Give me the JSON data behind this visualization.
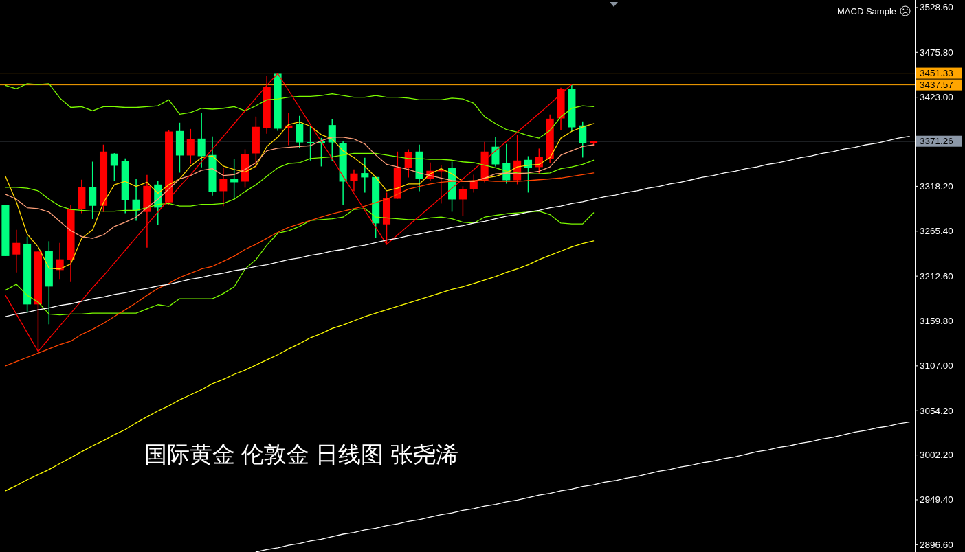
{
  "chart_data": {
    "type": "candlestick",
    "categories": [
      null,
      null,
      null,
      null,
      null,
      null,
      null,
      null,
      null,
      null,
      null,
      null,
      null,
      null,
      null,
      null,
      null,
      null,
      null,
      null,
      null,
      null,
      null,
      null,
      null,
      null,
      null,
      null,
      null,
      null,
      null,
      null,
      null,
      null,
      null,
      null,
      null,
      null,
      null,
      null,
      null,
      null,
      null,
      null,
      null,
      null,
      null,
      null,
      null,
      null,
      null,
      null,
      null,
      null,
      null,
      null,
      null,
      null,
      null,
      null,
      null,
      null,
      null,
      null,
      null,
      null,
      null,
      null,
      null,
      null,
      null,
      null,
      null,
      null,
      null,
      null,
      null,
      null,
      null,
      null,
      null,
      null,
      null,
      null
    ],
    "ohlc": [
      [
        3296.7,
        3296.7,
        3236.2,
        3236.2
      ],
      [
        3238.0,
        3267.1,
        3217.0,
        3251.7
      ],
      [
        3250.7,
        3259.0,
        3170.2,
        3179.3
      ],
      [
        3179.3,
        3242.3,
        3124.2,
        3241.5
      ],
      [
        3242.1,
        3253.6,
        3155.9,
        3200.3
      ],
      [
        3219.7,
        3251.7,
        3208.4,
        3232.4
      ],
      [
        3231.8,
        3296.7,
        3205.7,
        3291.3
      ],
      [
        3291.3,
        3326.0,
        3286.7,
        3317.1
      ],
      [
        3317.1,
        3347.2,
        3279.8,
        3295.3
      ],
      [
        3295.3,
        3367.2,
        3288.1,
        3359.1
      ],
      [
        3356.7,
        3357.2,
        3324.6,
        3342.4
      ],
      [
        3347.8,
        3351.0,
        3286.7,
        3302.0
      ],
      [
        3302.6,
        3326.8,
        3277.8,
        3289.7
      ],
      [
        3288.1,
        3331.7,
        3246.1,
        3318.7
      ],
      [
        3320.3,
        3324.4,
        3273.0,
        3293.2
      ],
      [
        3299.4,
        3384.4,
        3295.9,
        3382.7
      ],
      [
        3383.3,
        3393.0,
        3334.3,
        3354.5
      ],
      [
        3354.5,
        3385.7,
        3344.6,
        3373.6
      ],
      [
        3374.4,
        3404.3,
        3340.5,
        3353.7
      ],
      [
        3355.1,
        3376.9,
        3307.4,
        3311.7
      ],
      [
        3312.5,
        3339.7,
        3294.8,
        3326.8
      ],
      [
        3326.8,
        3350.5,
        3302.8,
        3323.0
      ],
      [
        3323.8,
        3361.8,
        3316.6,
        3355.9
      ],
      [
        3356.9,
        3400.3,
        3340.3,
        3388.2
      ],
      [
        3386.5,
        3447.9,
        3380.1,
        3435.0
      ],
      [
        3450.6,
        3451.33,
        3383.6,
        3386.0
      ],
      [
        3386.5,
        3404.3,
        3366.6,
        3389.8
      ],
      [
        3391.4,
        3401.1,
        3363.4,
        3369.8
      ],
      [
        3370.2,
        3389.0,
        3348.6,
        3369.6
      ],
      [
        3371.4,
        3375.2,
        3341.6,
        3369.3
      ],
      [
        3390.3,
        3397.0,
        3347.8,
        3369.8
      ],
      [
        3369.3,
        3371.0,
        3296.4,
        3323.8
      ],
      [
        3324.6,
        3338.1,
        3312.5,
        3333.3
      ],
      [
        3333.8,
        3351.8,
        3310.9,
        3328.7
      ],
      [
        3329.2,
        3329.2,
        3257.4,
        3274.6
      ],
      [
        3273.5,
        3310.9,
        3249.6,
        3304.2
      ],
      [
        3303.6,
        3359.1,
        3303.6,
        3340.5
      ],
      [
        3339.7,
        3361.8,
        3328.7,
        3358.3
      ],
      [
        3359.1,
        3367.2,
        3312.5,
        3327.0
      ],
      [
        3327.0,
        3346.2,
        3324.6,
        3336.5
      ],
      [
        3335.9,
        3343.0,
        3298.0,
        3337.3
      ],
      [
        3339.7,
        3347.2,
        3288.3,
        3302.8
      ],
      [
        3302.8,
        3318.2,
        3283.5,
        3314.9
      ],
      [
        3314.9,
        3331.9,
        3310.9,
        3324.6
      ],
      [
        3324.6,
        3370.4,
        3323.0,
        3359.1
      ],
      [
        3364.8,
        3376.0,
        3341.6,
        3344.0
      ],
      [
        3345.4,
        3368.0,
        3321.4,
        3325.4
      ],
      [
        3325.4,
        3378.5,
        3320.6,
        3348.6
      ],
      [
        3349.4,
        3353.7,
        3310.9,
        3340.0
      ],
      [
        3340.8,
        3362.6,
        3332.7,
        3352.6
      ],
      [
        3350.5,
        3402.7,
        3345.6,
        3397.8
      ],
      [
        3398.1,
        3434.2,
        3384.4,
        3432.5
      ],
      [
        3432.5,
        3437.57,
        3382.7,
        3387.6
      ],
      [
        3389.8,
        3394.6,
        3352.1,
        3369.0
      ],
      [
        3369.0,
        3371.26,
        3365.5,
        3371.26
      ],
      null,
      null,
      null,
      null,
      null,
      null,
      null,
      null,
      null,
      null,
      null,
      null,
      null,
      null,
      null,
      null,
      null,
      null,
      null,
      null,
      null,
      null,
      null,
      null,
      null,
      null,
      null,
      null,
      null
    ],
    "colors": [
      "#00ff7f",
      "#ff0000",
      "#00ff7f",
      "#ff0000",
      "#00ff7f",
      "#ff0000",
      "#ff0000",
      "#ff0000",
      "#00ff7f",
      "#ff0000",
      "#00ff7f",
      "#00ff7f",
      "#00ff7f",
      "#ff0000",
      "#00ff7f",
      "#ff0000",
      "#00ff7f",
      "#ff0000",
      "#00ff7f",
      "#00ff7f",
      "#ff0000",
      "#00ff7f",
      "#ff0000",
      "#ff0000",
      "#ff0000",
      "#00ff7f",
      "#ff0000",
      "#00ff7f",
      "#00ff7f",
      "#00ff7f",
      "#00ff7f",
      "#00ff7f",
      "#ff0000",
      "#00ff7f",
      "#00ff7f",
      "#ff0000",
      "#ff0000",
      "#ff0000",
      "#00ff7f",
      "#ff0000",
      "#ff0000",
      "#00ff7f",
      "#ff0000",
      "#ff0000",
      "#ff0000",
      "#00ff7f",
      "#00ff7f",
      "#ff0000",
      "#00ff7f",
      "#ff0000",
      "#ff0000",
      "#ff0000",
      "#00ff7f",
      "#00ff7f",
      "#ff0000",
      null,
      null,
      null,
      null,
      null,
      null,
      null,
      null,
      null,
      null,
      null,
      null,
      null,
      null,
      null,
      null,
      null,
      null,
      null,
      null,
      null,
      null,
      null,
      null,
      null,
      null,
      null,
      null,
      null
    ],
    "series": [
      {
        "type": "line",
        "color": "#7cfc00",
        "values": [
          3437,
          3433,
          3439,
          3438,
          3439,
          3422,
          3411,
          3412,
          3407,
          3412,
          3412,
          3411,
          3411,
          3412,
          3413,
          3420,
          3403,
          3405,
          3410,
          3409,
          3410,
          3412,
          3407,
          3413,
          3420,
          3421,
          3423,
          3424,
          3424,
          3425,
          3427,
          3425,
          3423,
          3423,
          3425,
          3423,
          3423,
          3422,
          3420,
          3420,
          3420,
          3422,
          3421,
          3416,
          3400,
          3392,
          3385,
          3382,
          3378,
          3375,
          3384,
          3400,
          3410,
          3413,
          3412,
          null,
          null,
          null,
          null,
          null,
          null,
          null,
          null,
          null,
          null,
          null,
          null,
          null,
          null,
          null,
          null,
          null,
          null,
          null,
          null,
          null,
          null,
          null,
          null,
          null,
          null,
          null,
          null,
          null
        ]
      },
      {
        "type": "line",
        "color": "#7cfc00",
        "values": [
          3196,
          3203,
          3190,
          3182,
          3168,
          3167,
          3168,
          3168,
          3169,
          3169,
          3169,
          3169,
          3169,
          3174,
          3179,
          3177,
          3186,
          3186,
          3186,
          3186,
          3192,
          3200,
          3221,
          3232,
          3249,
          3263,
          3266,
          3271,
          3278,
          3279,
          3280,
          3282,
          3291,
          3292,
          3282,
          3281,
          3280,
          3279,
          3279,
          3281,
          3282,
          3280,
          3276,
          3275,
          3282,
          3284,
          3286,
          3287,
          3288,
          3289,
          3285,
          3275,
          3274,
          3274,
          3287,
          null,
          null,
          null,
          null,
          null,
          null,
          null,
          null,
          null,
          null,
          null,
          null,
          null,
          null,
          null,
          null,
          null,
          null,
          null,
          null,
          null,
          null,
          null,
          null,
          null,
          null,
          null,
          null,
          null
        ]
      },
      {
        "type": "line",
        "color": "#7cfc00",
        "values": [
          3317,
          3317,
          3316,
          3313,
          3303,
          3295,
          3291,
          3290,
          3289,
          3289,
          3289,
          3290,
          3290,
          3293,
          3297,
          3298,
          3295,
          3295,
          3297,
          3297,
          3298,
          3303,
          3312,
          3320,
          3330,
          3340,
          3345,
          3346,
          3351,
          3352,
          3353,
          3355,
          3357,
          3357,
          3357,
          3355,
          3353,
          3351,
          3351,
          3350,
          3350,
          3349,
          3347,
          3346,
          3343,
          3340,
          3336,
          3334,
          3333,
          3333,
          3334,
          3339,
          3341,
          3344,
          3349,
          null,
          null,
          null,
          null,
          null,
          null,
          null,
          null,
          null,
          null,
          null,
          null,
          null,
          null,
          null,
          null,
          null,
          null,
          null,
          null,
          null,
          null,
          null,
          null,
          null,
          null,
          null,
          null,
          null
        ]
      },
      {
        "type": "line",
        "color": "#ffd700",
        "values": [
          3330,
          3300,
          3262,
          3247,
          3222,
          3221,
          3227,
          3257,
          3267,
          3299,
          3320,
          3324,
          3318,
          3323,
          3310,
          3320,
          3327,
          3342,
          3352,
          3354,
          3342,
          3338,
          3335,
          3342,
          3365,
          3376,
          3391,
          3394,
          3389,
          3379,
          3374,
          3360,
          3352,
          3342,
          3329,
          3313,
          3316,
          3321,
          3321,
          3333,
          3339,
          3333,
          3324,
          3324,
          3328,
          3330,
          3334,
          3341,
          3343,
          3344,
          3352,
          3375,
          3383,
          3388,
          3392,
          null,
          null,
          null,
          null,
          null,
          null,
          null,
          null,
          null,
          null,
          null,
          null,
          null,
          null,
          null,
          null,
          null,
          null,
          null,
          null,
          null,
          null,
          null,
          null,
          null,
          null,
          null,
          null,
          null
        ]
      },
      {
        "type": "line",
        "color": "#ffa07a",
        "values": [
          3309,
          3303,
          3293,
          3292,
          3288,
          3277,
          3266,
          3259,
          3257,
          3261,
          3271,
          3276,
          3282,
          3293,
          3303,
          3315,
          3327,
          3331,
          3337,
          3339,
          3331,
          3332,
          3338,
          3346,
          3360,
          3363,
          3364,
          3365,
          3366,
          3372,
          3376,
          3376,
          3374,
          3368,
          3355,
          3344,
          3341,
          3338,
          3334,
          3331,
          3328,
          3325,
          3324,
          3324,
          3328,
          3333,
          3334,
          3333,
          3334,
          3336,
          3341,
          3355,
          3360,
          3365,
          3367,
          null,
          null,
          null,
          null,
          null,
          null,
          null,
          null,
          null,
          null,
          null,
          null,
          null,
          null,
          null,
          null,
          null,
          null,
          null,
          null,
          null,
          null,
          null,
          null,
          null,
          null,
          null,
          null,
          null
        ]
      },
      {
        "type": "line",
        "color": "#ff4500",
        "values": [
          3107,
          3112,
          3117,
          3122,
          3127,
          3132,
          3136,
          3144,
          3150,
          3157,
          3165,
          3173,
          3181,
          3190,
          3198,
          3204,
          3211,
          3216,
          3221,
          3224,
          3230,
          3236,
          3244,
          3250,
          3257,
          3264,
          3270,
          3274,
          3278,
          3282,
          3286,
          3289,
          3292,
          3295,
          3299,
          3303,
          3309,
          3315,
          3318,
          3321,
          3323,
          3324,
          3324,
          3325,
          3325,
          3324,
          3324,
          3324,
          3325,
          3326,
          3327,
          3328,
          3330,
          3332,
          3334,
          null,
          null,
          null,
          null,
          null,
          null,
          null,
          null,
          null,
          null,
          null,
          null,
          null,
          null,
          null,
          null,
          null,
          null,
          null,
          null,
          null,
          null,
          null,
          null,
          null,
          null,
          null,
          null,
          null
        ]
      },
      {
        "type": "line",
        "color": "#ffff00",
        "values": [
          2960,
          2966,
          2973,
          2979,
          2985,
          2992,
          2999,
          3006,
          3013,
          3019,
          3026,
          3032,
          3040,
          3047,
          3054,
          3060,
          3067,
          3073,
          3079,
          3086,
          3091,
          3097,
          3102,
          3108,
          3114,
          3120,
          3127,
          3133,
          3140,
          3145,
          3151,
          3155,
          3160,
          3165,
          3169,
          3173,
          3177,
          3181,
          3185,
          3189,
          3193,
          3197,
          3200,
          3204,
          3208,
          3212,
          3217,
          3221,
          3226,
          3232,
          3237,
          3242,
          3247,
          3251,
          3254,
          null,
          null,
          null,
          null,
          null,
          null,
          null,
          null,
          null,
          null,
          null,
          null,
          null,
          null,
          null,
          null,
          null,
          null,
          null,
          null,
          null,
          null,
          null,
          null,
          null,
          null,
          null,
          null,
          null
        ]
      },
      {
        "type": "line",
        "color": "#ff0000",
        "values": [
          3190,
          3168,
          3146,
          3124,
          3139,
          3154,
          3169,
          3184,
          3199,
          3213,
          3228,
          3243,
          3258,
          3273,
          3288,
          3303,
          3318,
          3332,
          3347,
          3362,
          3377,
          3392,
          3407,
          3422,
          3437,
          3451,
          3431,
          3411,
          3391,
          3371,
          3351,
          3330,
          3310,
          3290,
          3270,
          3250,
          3261,
          3272,
          3283,
          3294,
          3305,
          3316,
          3327,
          3338,
          3349,
          3360,
          3371,
          3382,
          3393,
          3404,
          3415,
          3427,
          3438,
          null,
          null,
          null,
          null,
          null,
          null,
          null,
          null,
          null,
          null,
          null,
          null,
          null,
          null,
          null,
          null,
          null,
          null,
          null,
          null,
          null,
          null,
          null,
          null,
          null,
          null,
          null,
          null,
          null,
          null,
          null
        ]
      },
      {
        "type": "line",
        "color": "#ffffff",
        "values": [
          3165,
          3168,
          3170,
          3173,
          3175,
          3178,
          3180,
          3183,
          3186,
          3188,
          3191,
          3193,
          3196,
          3198,
          3201,
          3203,
          3206,
          3209,
          3211,
          3214,
          3216,
          3219,
          3221,
          3224,
          3226,
          3229,
          3232,
          3234,
          3237,
          3239,
          3242,
          3244,
          3247,
          3249,
          3252,
          3255,
          3257,
          3260,
          3262,
          3265,
          3267,
          3270,
          3272,
          3275,
          3277,
          3280,
          3283,
          3285,
          3288,
          3290,
          3293,
          3295,
          3298,
          3300,
          3303,
          3306,
          3308,
          3311,
          3313,
          3316,
          3318,
          3321,
          3323,
          3326,
          3329,
          3331,
          3334,
          3336,
          3339,
          3341,
          3344,
          3346,
          3349,
          3352,
          3354,
          3357,
          3359,
          3362,
          3364,
          3367,
          3369,
          3372,
          3375,
          3377
        ]
      },
      {
        "type": "line",
        "color": "#ffffff",
        "values": [
          null,
          null,
          null,
          null,
          null,
          null,
          null,
          null,
          null,
          null,
          null,
          null,
          null,
          null,
          null,
          null,
          null,
          null,
          null,
          null,
          null,
          null,
          null,
          2888,
          2891,
          2893,
          2896,
          2898,
          2901,
          2903,
          2906,
          2909,
          2911,
          2914,
          2916,
          2919,
          2921,
          2924,
          2926,
          2929,
          2932,
          2934,
          2937,
          2939,
          2942,
          2944,
          2947,
          2949,
          2952,
          2955,
          2957,
          2960,
          2962,
          2965,
          2967,
          2970,
          2972,
          2975,
          2977,
          2980,
          2983,
          2985,
          2988,
          2990,
          2993,
          2995,
          2998,
          3000,
          3003,
          3006,
          3008,
          3011,
          3013,
          3016,
          3018,
          3021,
          3023,
          3026,
          3029,
          3031,
          3034,
          3036,
          3039,
          3041
        ]
      }
    ],
    "ylim": [
      2888,
      3535
    ],
    "yticks": [
      {
        "value": 3528.6,
        "label": "3528.60"
      },
      {
        "value": 3475.8,
        "label": "3475.80"
      },
      {
        "value": 3423,
        "label": "3423.00"
      },
      {
        "value": 3318.2,
        "label": "3318.20"
      },
      {
        "value": 3265.4,
        "label": "3265.40"
      },
      {
        "value": 3212.6,
        "label": "3212.60"
      },
      {
        "value": 3159.8,
        "label": "3159.80"
      },
      {
        "value": 3107,
        "label": "3107.00"
      },
      {
        "value": 3054.2,
        "label": "3054.20"
      },
      {
        "value": 3002.2,
        "label": "3002.20"
      },
      {
        "value": 2949.4,
        "label": "2949.40"
      },
      {
        "value": 2896.6,
        "label": "2896.60"
      }
    ],
    "ref_lines": [
      {
        "axis": "y",
        "value": 3451.33,
        "label": "3451.33",
        "color": "#ffa500"
      },
      {
        "axis": "y",
        "value": 3437.57,
        "label": "3437.57",
        "color": "#ffa500"
      },
      {
        "axis": "y",
        "value": 3371.26,
        "label": "3371.26",
        "color": "#8c98a8"
      }
    ],
    "annotations": [
      "国际黄金 伦敦金 日线图 张尧浠",
      "MACD Sample"
    ],
    "tick_labels": "y"
  }
}
